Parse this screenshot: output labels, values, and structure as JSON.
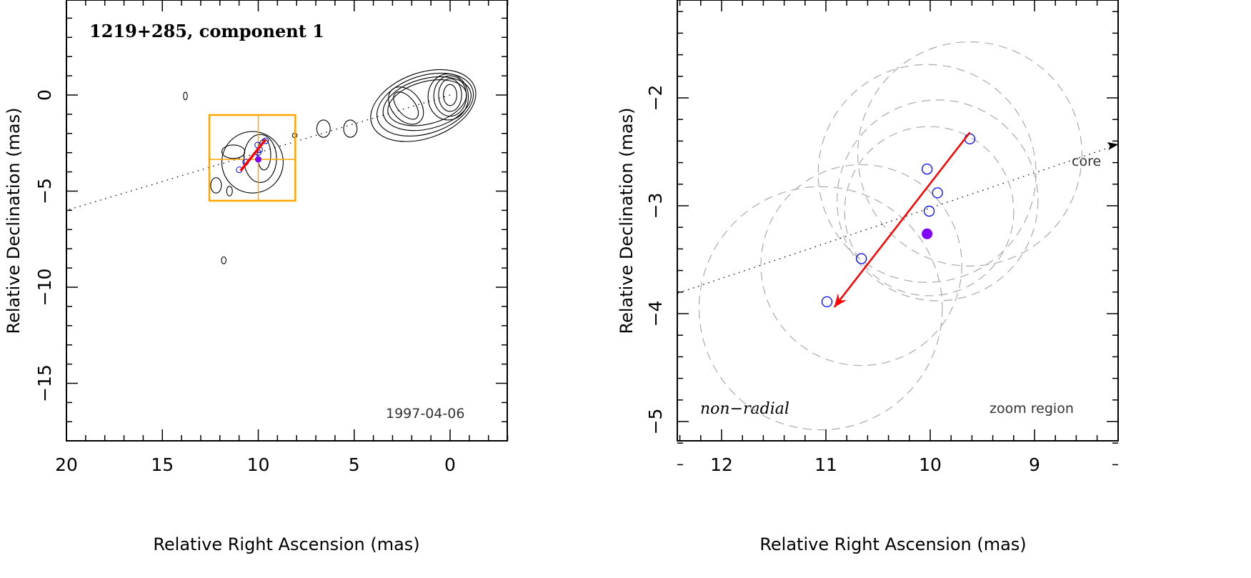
{
  "chart_data": [
    {
      "type": "scatter",
      "panel": "overview",
      "title": "1219+285, component 1",
      "annotation": "1997-04-06",
      "xlabel": "Relative Right Ascension (mas)",
      "ylabel": "Relative Declination (mas)",
      "xlim": [
        20,
        -3
      ],
      "ylim": [
        -18,
        4.9
      ],
      "xticks": [
        20,
        15,
        10,
        5,
        0
      ],
      "xtick_labels": [
        "20",
        "15",
        "10",
        "5",
        "0"
      ],
      "yticks": [
        0,
        -5,
        -10,
        -15
      ],
      "ytick_labels": [
        "0",
        "−5",
        "−10",
        "−15"
      ],
      "ridge_line": {
        "from": [
          0,
          0
        ],
        "to": [
          20,
          -6
        ]
      },
      "zoom_box": {
        "ra": [
          8.07,
          12.55
        ],
        "dec": [
          -5.5,
          -1.04
        ],
        "cross": [
          10.0,
          -3.35
        ],
        "color": "#FFA500"
      },
      "component_mean": [
        10.0,
        -3.35
      ],
      "component_points": [
        [
          10.03,
          -2.6
        ],
        [
          9.93,
          -2.85
        ],
        [
          10.01,
          -3.0
        ],
        [
          9.62,
          -2.38
        ],
        [
          10.66,
          -3.49
        ],
        [
          10.99,
          -3.89
        ]
      ],
      "motion_vector": {
        "from": [
          9.62,
          -2.32
        ],
        "to": [
          10.92,
          -3.94
        ],
        "color": "#FF0000"
      },
      "contours": [
        [
          0,
          0,
          0.35,
          0.55,
          0
        ],
        [
          0,
          0,
          0.6,
          0.85,
          0
        ],
        [
          0,
          -0.05,
          0.85,
          1.05,
          0
        ],
        [
          0.1,
          -0.1,
          1.05,
          1.2,
          0
        ],
        [
          2.3,
          -0.55,
          0.45,
          0.85,
          -40
        ],
        [
          2.3,
          -0.55,
          0.75,
          1.1,
          -40
        ],
        [
          1.2,
          -0.4,
          2.1,
          1.1,
          -15
        ],
        [
          1.2,
          -0.45,
          2.35,
          1.3,
          -15
        ],
        [
          1.3,
          -0.5,
          2.6,
          1.5,
          -18
        ],
        [
          1.4,
          -0.55,
          2.85,
          1.7,
          -20
        ],
        [
          13.8,
          -0.05,
          0.1,
          0.2,
          0
        ],
        [
          8.1,
          -2.1,
          0.12,
          0.12,
          0
        ],
        [
          6.6,
          -1.75,
          0.35,
          0.45,
          0
        ],
        [
          5.2,
          -1.75,
          0.35,
          0.45,
          0
        ],
        [
          11.8,
          -8.6,
          0.12,
          0.18,
          0
        ],
        [
          12.2,
          -4.7,
          0.28,
          0.4,
          0
        ],
        [
          11.5,
          -5.0,
          0.15,
          0.25,
          0
        ],
        [
          9.7,
          -3.1,
          0.35,
          0.8,
          0
        ],
        [
          9.9,
          -3.3,
          0.85,
          1.25,
          0
        ],
        [
          10.3,
          -3.5,
          1.6,
          1.6,
          0
        ],
        [
          11.3,
          -2.95,
          0.6,
          0.35,
          0
        ]
      ],
      "colors": {
        "points": "#0000FF",
        "mean": "#7F00FF"
      }
    },
    {
      "type": "scatter",
      "panel": "zoom",
      "annotation_left": "non−radial",
      "annotation_right": "zoom region",
      "core_label": "core",
      "xlabel": "Relative Right Ascension (mas)",
      "ylabel": "Relative Declination (mas)",
      "xlim": [
        12.42,
        8.2
      ],
      "ylim": [
        -5.4,
        -1.1
      ],
      "xticks": [
        12,
        11,
        10,
        9
      ],
      "xtick_labels": [
        "12",
        "11",
        "10",
        "9"
      ],
      "yticks": [
        -2,
        -3,
        -4,
        -5
      ],
      "ytick_labels": [
        "−2",
        "−3",
        "−4",
        "−5"
      ],
      "points": [
        [
          10.03,
          -2.66
        ],
        [
          9.93,
          -2.88
        ],
        [
          10.01,
          -3.05
        ],
        [
          9.62,
          -2.38
        ],
        [
          10.66,
          -3.49
        ],
        [
          10.99,
          -3.89
        ]
      ],
      "mean_point": [
        10.03,
        -3.26
      ],
      "error_circles": [
        [
          9.62,
          -2.52,
          1.06
        ],
        [
          10.03,
          -2.7,
          1.03
        ],
        [
          9.93,
          -2.95,
          0.95
        ],
        [
          10.01,
          -3.05,
          0.8
        ],
        [
          10.66,
          -3.55,
          0.95
        ],
        [
          11.05,
          -3.95,
          1.15
        ]
      ],
      "motion_vector": {
        "from": [
          9.62,
          -2.32
        ],
        "to": [
          10.92,
          -3.94
        ],
        "color": "#FF0000"
      },
      "ridge_line": {
        "from": [
          12.42,
          -3.81
        ],
        "to": [
          8.25,
          -2.45
        ]
      },
      "colors": {
        "points": "#0000FF",
        "mean": "#7F00FF",
        "circles": "#AAAAAA"
      }
    }
  ]
}
